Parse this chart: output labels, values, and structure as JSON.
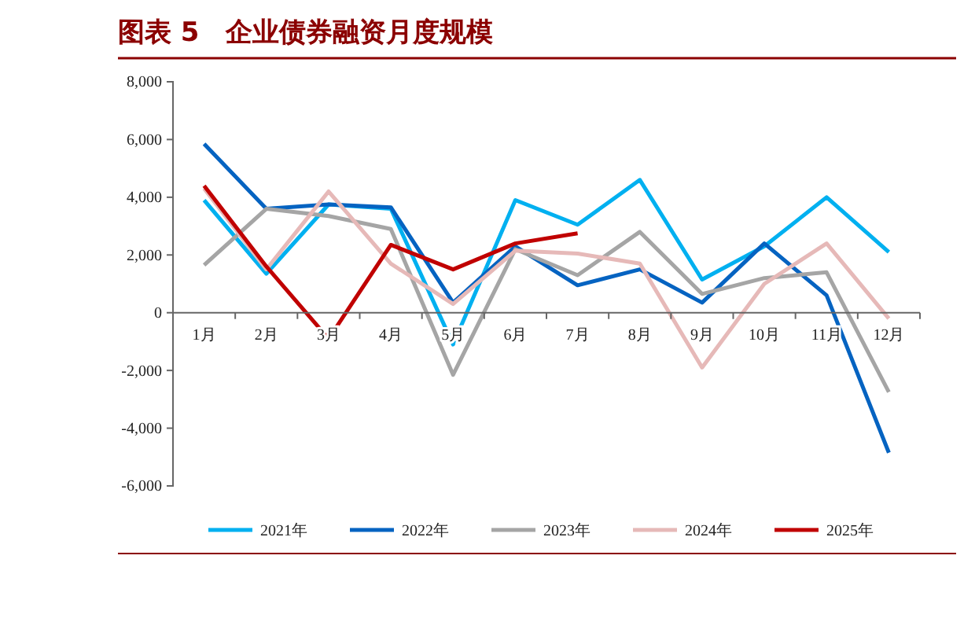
{
  "chart_data": {
    "type": "line",
    "title": "图表 5　企业债券融资月度规模",
    "categories": [
      "1月",
      "2月",
      "3月",
      "4月",
      "5月",
      "6月",
      "7月",
      "8月",
      "9月",
      "10月",
      "11月",
      "12月"
    ],
    "series": [
      {
        "name": "2021年",
        "color": "#00b0f0",
        "values": [
          3900,
          1350,
          3750,
          3600,
          -1100,
          3900,
          3050,
          4600,
          1150,
          2300,
          4000,
          2100
        ]
      },
      {
        "name": "2022年",
        "color": "#0563c1",
        "values": [
          5850,
          3600,
          3750,
          3650,
          350,
          2300,
          950,
          1500,
          350,
          2400,
          600,
          -4850
        ]
      },
      {
        "name": "2023年",
        "color": "#a5a5a5",
        "values": [
          1650,
          3600,
          3350,
          2900,
          -2150,
          2200,
          1300,
          2800,
          650,
          1200,
          1400,
          -2750
        ]
      },
      {
        "name": "2024年",
        "color": "#e6b9b8",
        "values": [
          4300,
          1500,
          4200,
          1700,
          300,
          2150,
          2050,
          1700,
          -1900,
          1000,
          2400,
          -200
        ]
      },
      {
        "name": "2025年",
        "color": "#c00000",
        "values": [
          4400,
          1600,
          -900,
          2350,
          1500,
          2400,
          2750,
          null,
          null,
          null,
          null,
          null
        ]
      }
    ],
    "ylim": [
      -6000,
      8000
    ],
    "yticks": [
      {
        "value": -6000,
        "label": "-6,000"
      },
      {
        "value": -4000,
        "label": "-4,000"
      },
      {
        "value": -2000,
        "label": "-2,000"
      },
      0,
      {
        "value": 2000,
        "label": "2,000"
      },
      {
        "value": 4000,
        "label": "4,000"
      },
      {
        "value": 6000,
        "label": "6,000"
      },
      {
        "value": 8000,
        "label": "8,000"
      }
    ],
    "grid": false,
    "legend": "bottom",
    "marker": "none",
    "line_style": "solid"
  }
}
